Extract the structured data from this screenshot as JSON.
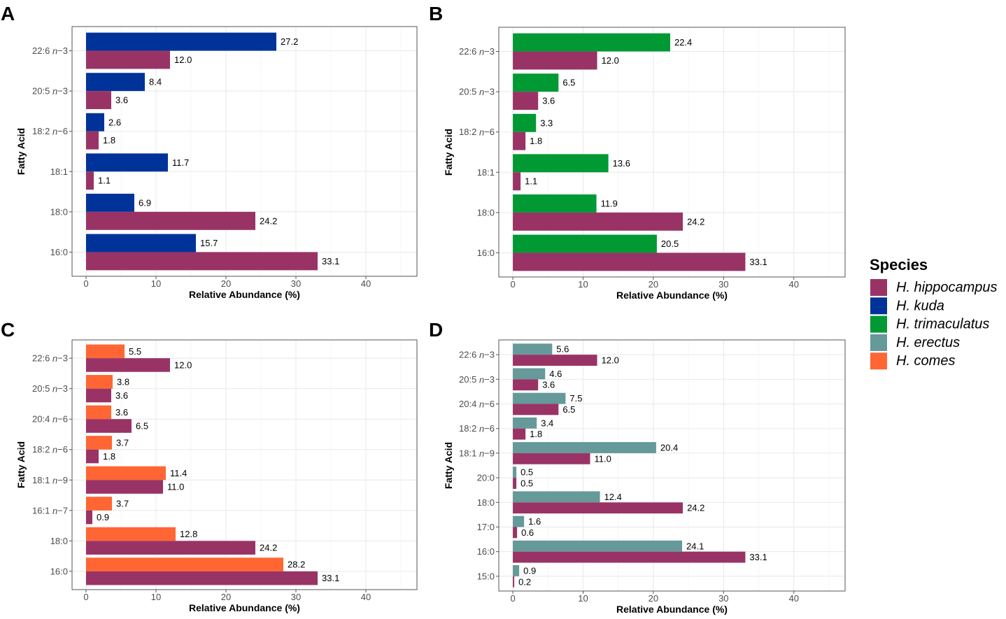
{
  "legend": {
    "title": "Species",
    "entries": [
      {
        "label": "H. hippocampus",
        "color": "#993366"
      },
      {
        "label": "H. kuda",
        "color": "#003399"
      },
      {
        "label": "H. trimaculatus",
        "color": "#009933"
      },
      {
        "label": "H. erectus",
        "color": "#669999"
      },
      {
        "label": "H. comes",
        "color": "#ff6633"
      }
    ]
  },
  "chart_data": [
    {
      "panel": "A",
      "type": "bar",
      "xlabel": "Relative Abundance (%)",
      "ylabel": "Fatty Acid",
      "xlim": [
        -2,
        47.3
      ],
      "xticks": [
        0,
        10,
        20,
        30,
        40
      ],
      "grid": true,
      "categories": [
        "22:6 n−3",
        "20:5 n−3",
        "18:2 n−6",
        "18:1",
        "18:0",
        "16:0"
      ],
      "series": [
        {
          "name": "H. kuda",
          "values": [
            27.2,
            8.4,
            2.6,
            11.7,
            6.9,
            15.7
          ]
        },
        {
          "name": "H. hippocampus",
          "values": [
            12.0,
            3.6,
            1.8,
            1.1,
            24.2,
            33.1
          ]
        }
      ]
    },
    {
      "panel": "B",
      "type": "bar",
      "xlabel": "Relative Abundance (%)",
      "ylabel": "Fatty Acid",
      "xlim": [
        -2,
        47.3
      ],
      "xticks": [
        0,
        10,
        20,
        30,
        40
      ],
      "grid": true,
      "categories": [
        "22:6 n−3",
        "20:5 n−3",
        "18:2 n−6",
        "18:1",
        "18:0",
        "16:0"
      ],
      "series": [
        {
          "name": "H. trimaculatus",
          "values": [
            22.4,
            6.5,
            3.3,
            13.6,
            11.9,
            20.5
          ]
        },
        {
          "name": "H. hippocampus",
          "values": [
            12.0,
            3.6,
            1.8,
            1.1,
            24.2,
            33.1
          ]
        }
      ]
    },
    {
      "panel": "C",
      "type": "bar",
      "xlabel": "Relative Abundance (%)",
      "ylabel": "Fatty Acid",
      "xlim": [
        -2,
        47.3
      ],
      "xticks": [
        0,
        10,
        20,
        30,
        40
      ],
      "grid": true,
      "categories": [
        "22:6 n−3",
        "20:5 n−3",
        "20:4 n−6",
        "18:2 n−6",
        "18:1 n−9",
        "16:1 n−7",
        "18:0",
        "16:0"
      ],
      "series": [
        {
          "name": "H. comes",
          "values": [
            5.5,
            3.8,
            3.6,
            3.7,
            11.4,
            3.7,
            12.8,
            28.2
          ]
        },
        {
          "name": "H. hippocampus",
          "values": [
            12.0,
            3.6,
            6.5,
            1.8,
            11.0,
            0.9,
            24.2,
            33.1
          ]
        }
      ]
    },
    {
      "panel": "D",
      "type": "bar",
      "xlabel": "Relative Abundance (%)",
      "ylabel": "Fatty Acid",
      "xlim": [
        -2,
        47.3
      ],
      "xticks": [
        0,
        10,
        20,
        30,
        40
      ],
      "grid": true,
      "categories": [
        "22:6 n−3",
        "20:5 n−3",
        "20:4 n−6",
        "18:2 n−6",
        "18:1 n−9",
        "20:0",
        "18:0",
        "17:0",
        "16:0",
        "15:0"
      ],
      "series": [
        {
          "name": "H. erectus",
          "values": [
            5.6,
            4.6,
            7.5,
            3.4,
            20.4,
            0.5,
            12.4,
            1.6,
            24.1,
            0.9
          ]
        },
        {
          "name": "H. hippocampus",
          "values": [
            12.0,
            3.6,
            6.5,
            1.8,
            11.0,
            0.5,
            24.2,
            0.6,
            33.1,
            0.2
          ]
        }
      ]
    }
  ]
}
